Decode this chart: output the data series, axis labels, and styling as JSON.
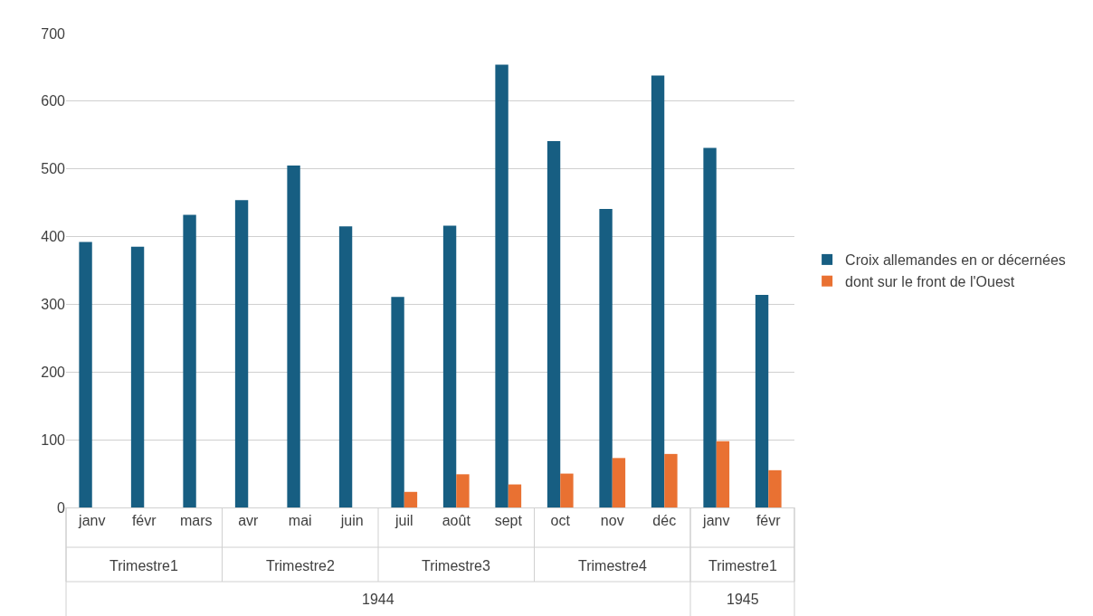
{
  "chart_data": {
    "type": "bar",
    "categories": [
      "janv",
      "févr",
      "mars",
      "avr",
      "mai",
      "juin",
      "juil",
      "août",
      "sept",
      "oct",
      "nov",
      "déc",
      "janv",
      "févr"
    ],
    "series": [
      {
        "name": "Croix allemandes en or décernées",
        "color": "#175e82",
        "values": [
          392,
          385,
          432,
          454,
          505,
          415,
          311,
          416,
          654,
          541,
          441,
          638,
          531,
          314
        ]
      },
      {
        "name": "dont sur le front de l'Ouest",
        "color": "#e97132",
        "values": [
          null,
          null,
          null,
          null,
          null,
          null,
          23,
          49,
          34,
          50,
          73,
          79,
          98,
          55
        ]
      }
    ],
    "annotations": [
      "Trimestre1",
      "Trimestre2",
      "Trimestre3",
      "Trimestre4",
      "Trimestre1",
      "1944",
      "1945"
    ],
    "ylim": [
      0,
      700
    ],
    "yticks": [
      0,
      100,
      200,
      300,
      400,
      500,
      600,
      700
    ],
    "grid": "y",
    "legend": "right"
  }
}
